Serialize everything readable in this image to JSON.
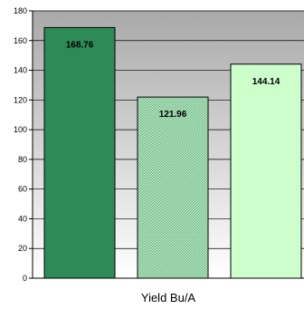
{
  "chart_data": {
    "type": "bar",
    "xlabel": "Yield Bu/A",
    "ylim": [
      0,
      180
    ],
    "yticks": [
      "0",
      "20",
      "40",
      "60",
      "80",
      "100",
      "120",
      "140",
      "160",
      "180"
    ],
    "grid": true,
    "series": [
      {
        "values": [
          168.76
        ],
        "color": "#2e8b57",
        "label": "168.76"
      },
      {
        "values": [
          121.96
        ],
        "color": "#8fd4a0",
        "label": "121.96"
      },
      {
        "values": [
          144.14
        ],
        "color": "#ccffcc",
        "label": "144.14"
      }
    ]
  }
}
